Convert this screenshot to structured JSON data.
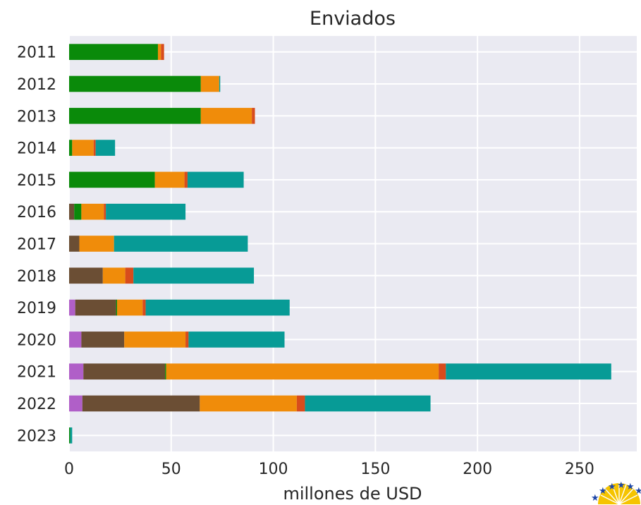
{
  "chart_data": {
    "type": "bar",
    "orientation": "horizontal",
    "stacked": true,
    "title": "Enviados",
    "xlabel": "millones de USD",
    "ylabel": "",
    "xlim": [
      0,
      278
    ],
    "xticks": [
      0,
      50,
      100,
      150,
      200,
      250
    ],
    "grid": true,
    "categories": [
      "2011",
      "2012",
      "2013",
      "2014",
      "2015",
      "2016",
      "2017",
      "2018",
      "2019",
      "2020",
      "2021",
      "2022",
      "2023"
    ],
    "series": [
      {
        "color": "#b05fc8",
        "values": [
          0,
          0,
          0,
          0,
          0,
          0,
          0,
          0,
          3,
          6,
          7,
          6.5,
          0
        ]
      },
      {
        "color": "#6b4e34",
        "values": [
          0,
          0,
          0,
          0,
          0,
          2.5,
          5,
          16.5,
          20,
          21,
          40,
          57.5,
          0
        ]
      },
      {
        "color": "#0a8a0a",
        "values": [
          43.5,
          64.5,
          64.5,
          1.5,
          42,
          3.5,
          0,
          0,
          0.5,
          0,
          0.5,
          0,
          0.5
        ]
      },
      {
        "color": "#f08c0a",
        "values": [
          1.5,
          9,
          25,
          10.5,
          14.5,
          11,
          17,
          11,
          12.5,
          30,
          133.5,
          47.5,
          0
        ]
      },
      {
        "color": "#d84c1c",
        "values": [
          1.5,
          0,
          1.5,
          1,
          1.5,
          1,
          0,
          4,
          1.5,
          1.5,
          3.5,
          4,
          0
        ]
      },
      {
        "color": "#079b96",
        "values": [
          0,
          0.5,
          0,
          9.5,
          27.5,
          39,
          65.5,
          59,
          70.5,
          47,
          81,
          61.5,
          1
        ]
      }
    ]
  },
  "logo": {
    "name": "stars-sun-logo-icon"
  }
}
